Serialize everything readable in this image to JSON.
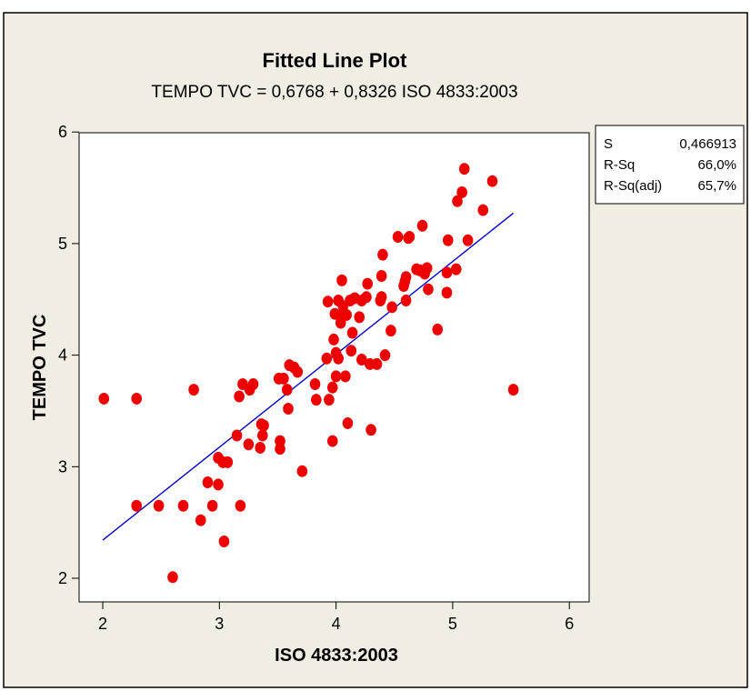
{
  "chart_data": {
    "type": "scatter",
    "title": "Fitted Line Plot",
    "subtitle": "TEMPO TVC =  0,6768 + 0,8326 ISO 4833:2003",
    "xlabel": "ISO 4833:2003",
    "ylabel": "TEMPO TVC",
    "xlim": [
      2,
      6
    ],
    "ylim": [
      2,
      6
    ],
    "xticks": [
      "2",
      "3",
      "4",
      "5",
      "6"
    ],
    "yticks": [
      "2",
      "3",
      "4",
      "5",
      "6"
    ],
    "grid": false,
    "fit_line": {
      "intercept": 0.6768,
      "slope": 0.8326,
      "x_range": [
        2.0,
        5.52
      ]
    },
    "stats": [
      {
        "label": "S",
        "value": "0,466913"
      },
      {
        "label": "R-Sq",
        "value": "66,0%"
      },
      {
        "label": "R-Sq(adj)",
        "value": "65,7%"
      }
    ],
    "colors": {
      "points": "#ee0000",
      "fit_line": "#0000cc",
      "background": "#f1ede3"
    },
    "points": [
      [
        2.01,
        3.61
      ],
      [
        2.29,
        3.61
      ],
      [
        2.29,
        2.65
      ],
      [
        2.48,
        2.65
      ],
      [
        2.6,
        2.01
      ],
      [
        2.69,
        2.65
      ],
      [
        2.78,
        3.69
      ],
      [
        2.84,
        2.52
      ],
      [
        2.9,
        2.86
      ],
      [
        2.94,
        2.65
      ],
      [
        2.99,
        2.84
      ],
      [
        2.99,
        3.08
      ],
      [
        3.03,
        3.04
      ],
      [
        3.04,
        2.33
      ],
      [
        3.07,
        3.04
      ],
      [
        3.15,
        3.28
      ],
      [
        3.17,
        3.63
      ],
      [
        3.18,
        2.65
      ],
      [
        3.2,
        3.74
      ],
      [
        3.25,
        3.2
      ],
      [
        3.26,
        3.69
      ],
      [
        3.29,
        3.74
      ],
      [
        3.35,
        3.17
      ],
      [
        3.36,
        3.38
      ],
      [
        3.37,
        3.28
      ],
      [
        3.38,
        3.37
      ],
      [
        3.51,
        3.79
      ],
      [
        3.52,
        3.23
      ],
      [
        3.52,
        3.16
      ],
      [
        3.55,
        3.79
      ],
      [
        3.58,
        3.69
      ],
      [
        3.59,
        3.52
      ],
      [
        3.6,
        3.91
      ],
      [
        3.64,
        3.89
      ],
      [
        3.67,
        3.85
      ],
      [
        3.71,
        2.96
      ],
      [
        3.82,
        3.74
      ],
      [
        3.83,
        3.6
      ],
      [
        3.92,
        3.97
      ],
      [
        3.93,
        4.48
      ],
      [
        3.94,
        3.6
      ],
      [
        3.97,
        3.23
      ],
      [
        3.97,
        3.71
      ],
      [
        3.98,
        4.14
      ],
      [
        3.99,
        4.37
      ],
      [
        4.0,
        3.81
      ],
      [
        4.0,
        4.02
      ],
      [
        4.02,
        4.49
      ],
      [
        4.02,
        3.97
      ],
      [
        4.04,
        4.29
      ],
      [
        4.05,
        4.67
      ],
      [
        4.06,
        4.37
      ],
      [
        4.08,
        3.81
      ],
      [
        4.09,
        4.36
      ],
      [
        4.1,
        3.39
      ],
      [
        4.12,
        4.49
      ],
      [
        4.13,
        4.04
      ],
      [
        4.14,
        4.2
      ],
      [
        4.16,
        4.51
      ],
      [
        4.2,
        4.34
      ],
      [
        4.22,
        4.49
      ],
      [
        4.22,
        3.96
      ],
      [
        4.26,
        4.52
      ],
      [
        4.27,
        4.64
      ],
      [
        4.29,
        3.92
      ],
      [
        4.3,
        3.33
      ],
      [
        4.35,
        3.92
      ],
      [
        4.38,
        4.49
      ],
      [
        4.39,
        4.52
      ],
      [
        4.39,
        4.71
      ],
      [
        4.4,
        4.9
      ],
      [
        4.42,
        4.0
      ],
      [
        4.47,
        4.22
      ],
      [
        4.48,
        4.43
      ],
      [
        4.53,
        5.06
      ],
      [
        4.58,
        4.62
      ],
      [
        4.59,
        4.66
      ],
      [
        4.6,
        4.7
      ],
      [
        4.6,
        4.49
      ],
      [
        4.62,
        5.05
      ],
      [
        4.63,
        5.06
      ],
      [
        4.69,
        4.77
      ],
      [
        4.72,
        4.76
      ],
      [
        4.74,
        5.16
      ],
      [
        4.76,
        4.73
      ],
      [
        4.78,
        4.78
      ],
      [
        4.79,
        4.59
      ],
      [
        4.87,
        4.23
      ],
      [
        4.95,
        4.56
      ],
      [
        4.95,
        4.74
      ],
      [
        4.96,
        5.03
      ],
      [
        5.03,
        4.77
      ],
      [
        5.04,
        5.38
      ],
      [
        5.08,
        5.46
      ],
      [
        5.1,
        5.67
      ],
      [
        5.13,
        5.03
      ],
      [
        5.26,
        5.3
      ],
      [
        5.34,
        5.56
      ],
      [
        5.52,
        3.69
      ],
      [
        4.06,
        4.44
      ]
    ]
  }
}
